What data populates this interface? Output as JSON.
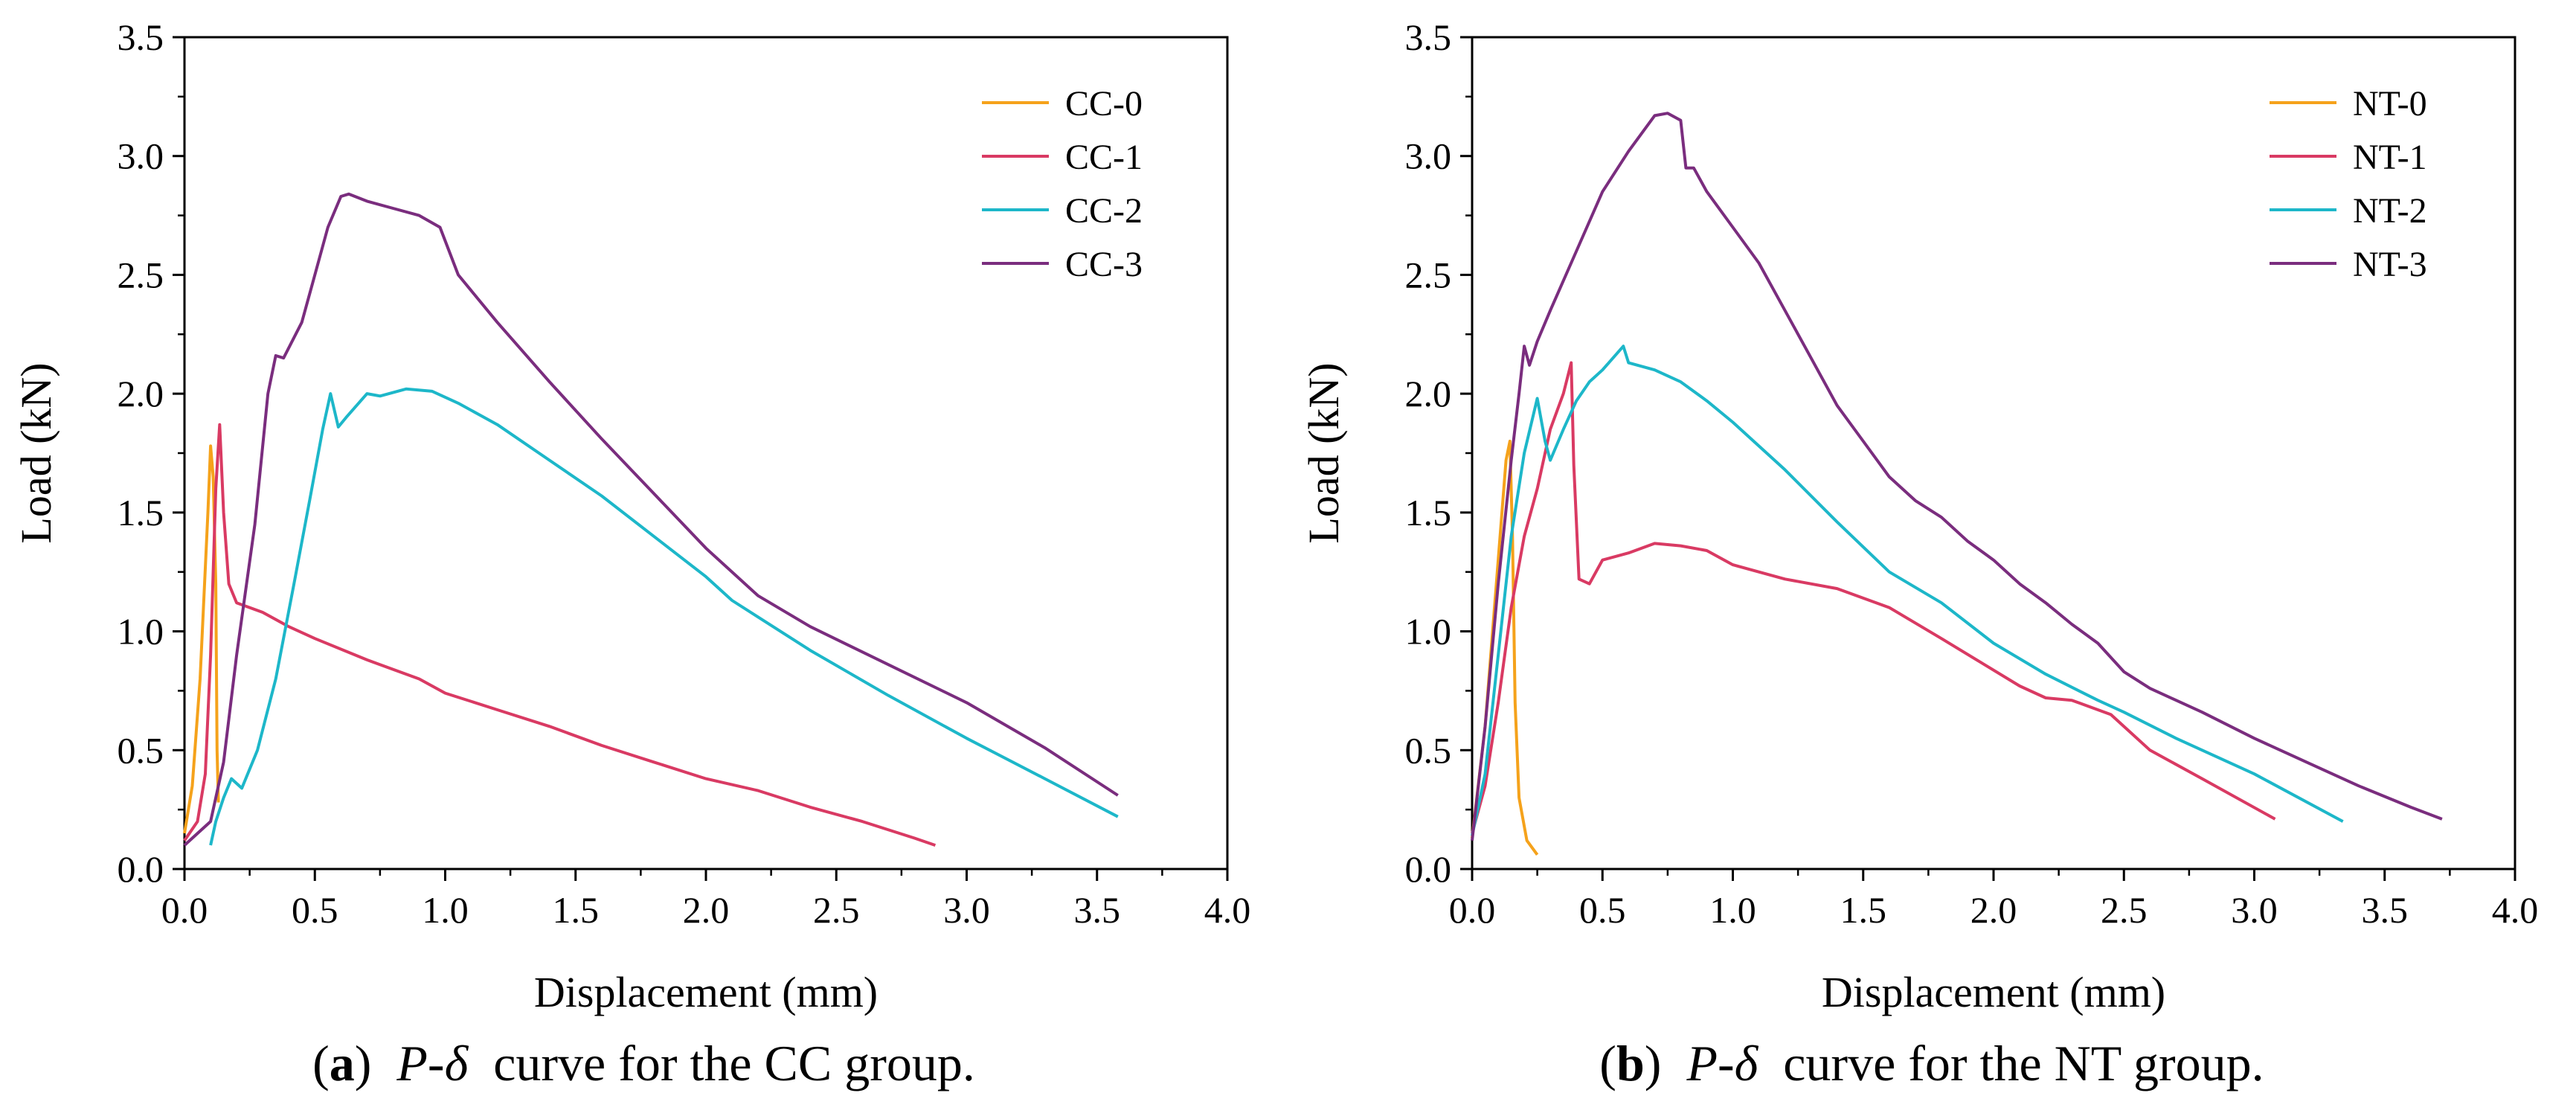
{
  "chart_data": [
    {
      "type": "line",
      "panel": "a",
      "caption": {
        "letter": "a",
        "text": "curve for the CC group."
      },
      "xlabel": "Displacement (mm)",
      "ylabel": "Load (kN)",
      "xlim": [
        0.0,
        4.0
      ],
      "ylim": [
        0.0,
        3.5
      ],
      "xticks": [
        "0.0",
        "0.5",
        "1.0",
        "1.5",
        "2.0",
        "2.5",
        "3.0",
        "3.5",
        "4.0"
      ],
      "yticks": [
        "0.0",
        "0.5",
        "1.0",
        "1.5",
        "2.0",
        "2.5",
        "3.0",
        "3.5"
      ],
      "grid": false,
      "legend_position": "top-right",
      "series": [
        {
          "name": "CC-0",
          "color": "#F5A21B",
          "points": [
            [
              0.0,
              0.15
            ],
            [
              0.03,
              0.35
            ],
            [
              0.06,
              0.8
            ],
            [
              0.09,
              1.5
            ],
            [
              0.1,
              1.78
            ],
            [
              0.11,
              1.65
            ],
            [
              0.12,
              1.2
            ],
            [
              0.125,
              0.5
            ],
            [
              0.13,
              0.28
            ]
          ]
        },
        {
          "name": "CC-1",
          "color": "#D93A63",
          "points": [
            [
              0.0,
              0.12
            ],
            [
              0.05,
              0.2
            ],
            [
              0.08,
              0.4
            ],
            [
              0.1,
              0.9
            ],
            [
              0.12,
              1.6
            ],
            [
              0.135,
              1.87
            ],
            [
              0.15,
              1.5
            ],
            [
              0.17,
              1.2
            ],
            [
              0.2,
              1.12
            ],
            [
              0.3,
              1.08
            ],
            [
              0.4,
              1.02
            ],
            [
              0.5,
              0.97
            ],
            [
              0.7,
              0.88
            ],
            [
              0.9,
              0.8
            ],
            [
              1.0,
              0.74
            ],
            [
              1.2,
              0.67
            ],
            [
              1.4,
              0.6
            ],
            [
              1.6,
              0.52
            ],
            [
              1.8,
              0.45
            ],
            [
              2.0,
              0.38
            ],
            [
              2.2,
              0.33
            ],
            [
              2.4,
              0.26
            ],
            [
              2.6,
              0.2
            ],
            [
              2.8,
              0.13
            ],
            [
              2.88,
              0.1
            ]
          ]
        },
        {
          "name": "CC-2",
          "color": "#1DB7C9",
          "points": [
            [
              0.1,
              0.1
            ],
            [
              0.12,
              0.2
            ],
            [
              0.15,
              0.3
            ],
            [
              0.18,
              0.38
            ],
            [
              0.22,
              0.34
            ],
            [
              0.28,
              0.5
            ],
            [
              0.35,
              0.8
            ],
            [
              0.42,
              1.2
            ],
            [
              0.48,
              1.55
            ],
            [
              0.53,
              1.85
            ],
            [
              0.56,
              2.0
            ],
            [
              0.59,
              1.86
            ],
            [
              0.62,
              1.9
            ],
            [
              0.7,
              2.0
            ],
            [
              0.75,
              1.99
            ],
            [
              0.85,
              2.02
            ],
            [
              0.95,
              2.01
            ],
            [
              1.05,
              1.96
            ],
            [
              1.2,
              1.87
            ],
            [
              1.4,
              1.72
            ],
            [
              1.6,
              1.57
            ],
            [
              1.8,
              1.4
            ],
            [
              2.0,
              1.23
            ],
            [
              2.1,
              1.13
            ],
            [
              2.4,
              0.92
            ],
            [
              2.7,
              0.73
            ],
            [
              3.0,
              0.55
            ],
            [
              3.3,
              0.38
            ],
            [
              3.58,
              0.22
            ]
          ]
        },
        {
          "name": "CC-3",
          "color": "#7A2D7E",
          "points": [
            [
              0.0,
              0.1
            ],
            [
              0.05,
              0.15
            ],
            [
              0.1,
              0.2
            ],
            [
              0.15,
              0.45
            ],
            [
              0.2,
              0.9
            ],
            [
              0.27,
              1.45
            ],
            [
              0.32,
              2.0
            ],
            [
              0.35,
              2.16
            ],
            [
              0.38,
              2.15
            ],
            [
              0.45,
              2.3
            ],
            [
              0.5,
              2.5
            ],
            [
              0.55,
              2.7
            ],
            [
              0.6,
              2.83
            ],
            [
              0.63,
              2.84
            ],
            [
              0.7,
              2.81
            ],
            [
              0.8,
              2.78
            ],
            [
              0.9,
              2.75
            ],
            [
              0.98,
              2.7
            ],
            [
              1.05,
              2.5
            ],
            [
              1.2,
              2.3
            ],
            [
              1.4,
              2.05
            ],
            [
              1.6,
              1.81
            ],
            [
              1.8,
              1.58
            ],
            [
              2.0,
              1.35
            ],
            [
              2.2,
              1.15
            ],
            [
              2.4,
              1.02
            ],
            [
              2.7,
              0.86
            ],
            [
              3.0,
              0.7
            ],
            [
              3.3,
              0.51
            ],
            [
              3.58,
              0.31
            ]
          ]
        }
      ]
    },
    {
      "type": "line",
      "panel": "b",
      "caption": {
        "letter": "b",
        "text": "curve for the NT group."
      },
      "xlabel": "Displacement (mm)",
      "ylabel": "Load (kN)",
      "xlim": [
        0.0,
        4.0
      ],
      "ylim": [
        0.0,
        3.5
      ],
      "xticks": [
        "0.0",
        "0.5",
        "1.0",
        "1.5",
        "2.0",
        "2.5",
        "3.0",
        "3.5",
        "4.0"
      ],
      "yticks": [
        "0.0",
        "0.5",
        "1.0",
        "1.5",
        "2.0",
        "2.5",
        "3.0",
        "3.5"
      ],
      "grid": false,
      "legend_position": "top-right",
      "series": [
        {
          "name": "NT-0",
          "color": "#F5A21B",
          "points": [
            [
              0.0,
              0.13
            ],
            [
              0.05,
              0.6
            ],
            [
              0.1,
              1.3
            ],
            [
              0.13,
              1.72
            ],
            [
              0.145,
              1.8
            ],
            [
              0.155,
              1.4
            ],
            [
              0.165,
              0.7
            ],
            [
              0.18,
              0.3
            ],
            [
              0.21,
              0.12
            ],
            [
              0.25,
              0.06
            ]
          ]
        },
        {
          "name": "NT-1",
          "color": "#D93A63",
          "points": [
            [
              0.0,
              0.15
            ],
            [
              0.05,
              0.35
            ],
            [
              0.1,
              0.7
            ],
            [
              0.15,
              1.1
            ],
            [
              0.2,
              1.4
            ],
            [
              0.25,
              1.6
            ],
            [
              0.3,
              1.85
            ],
            [
              0.35,
              2.0
            ],
            [
              0.38,
              2.13
            ],
            [
              0.39,
              1.7
            ],
            [
              0.41,
              1.22
            ],
            [
              0.45,
              1.2
            ],
            [
              0.5,
              1.3
            ],
            [
              0.6,
              1.33
            ],
            [
              0.7,
              1.37
            ],
            [
              0.8,
              1.36
            ],
            [
              0.9,
              1.34
            ],
            [
              1.0,
              1.28
            ],
            [
              1.2,
              1.22
            ],
            [
              1.4,
              1.18
            ],
            [
              1.6,
              1.1
            ],
            [
              1.8,
              0.97
            ],
            [
              1.95,
              0.87
            ],
            [
              2.1,
              0.77
            ],
            [
              2.2,
              0.72
            ],
            [
              2.3,
              0.71
            ],
            [
              2.45,
              0.65
            ],
            [
              2.6,
              0.5
            ],
            [
              2.8,
              0.38
            ],
            [
              3.08,
              0.21
            ]
          ]
        },
        {
          "name": "NT-2",
          "color": "#1DB7C9",
          "points": [
            [
              0.0,
              0.14
            ],
            [
              0.05,
              0.4
            ],
            [
              0.1,
              0.9
            ],
            [
              0.15,
              1.4
            ],
            [
              0.2,
              1.75
            ],
            [
              0.25,
              1.98
            ],
            [
              0.28,
              1.8
            ],
            [
              0.3,
              1.72
            ],
            [
              0.35,
              1.85
            ],
            [
              0.4,
              1.97
            ],
            [
              0.45,
              2.05
            ],
            [
              0.5,
              2.1
            ],
            [
              0.58,
              2.2
            ],
            [
              0.6,
              2.13
            ],
            [
              0.7,
              2.1
            ],
            [
              0.8,
              2.05
            ],
            [
              0.9,
              1.97
            ],
            [
              1.0,
              1.88
            ],
            [
              1.2,
              1.68
            ],
            [
              1.4,
              1.46
            ],
            [
              1.6,
              1.25
            ],
            [
              1.8,
              1.12
            ],
            [
              2.0,
              0.95
            ],
            [
              2.2,
              0.82
            ],
            [
              2.4,
              0.71
            ],
            [
              2.5,
              0.66
            ],
            [
              2.7,
              0.55
            ],
            [
              3.0,
              0.4
            ],
            [
              3.34,
              0.2
            ]
          ]
        },
        {
          "name": "NT-3",
          "color": "#7A2D7E",
          "points": [
            [
              0.0,
              0.12
            ],
            [
              0.05,
              0.6
            ],
            [
              0.1,
              1.2
            ],
            [
              0.15,
              1.72
            ],
            [
              0.18,
              2.0
            ],
            [
              0.2,
              2.2
            ],
            [
              0.22,
              2.12
            ],
            [
              0.25,
              2.22
            ],
            [
              0.3,
              2.35
            ],
            [
              0.4,
              2.6
            ],
            [
              0.5,
              2.85
            ],
            [
              0.6,
              3.02
            ],
            [
              0.7,
              3.17
            ],
            [
              0.75,
              3.18
            ],
            [
              0.8,
              3.15
            ],
            [
              0.82,
              2.95
            ],
            [
              0.85,
              2.95
            ],
            [
              0.9,
              2.85
            ],
            [
              1.0,
              2.7
            ],
            [
              1.1,
              2.55
            ],
            [
              1.2,
              2.35
            ],
            [
              1.3,
              2.15
            ],
            [
              1.4,
              1.95
            ],
            [
              1.5,
              1.8
            ],
            [
              1.6,
              1.65
            ],
            [
              1.7,
              1.55
            ],
            [
              1.8,
              1.48
            ],
            [
              1.9,
              1.38
            ],
            [
              2.0,
              1.3
            ],
            [
              2.1,
              1.2
            ],
            [
              2.2,
              1.12
            ],
            [
              2.3,
              1.03
            ],
            [
              2.4,
              0.95
            ],
            [
              2.5,
              0.83
            ],
            [
              2.6,
              0.76
            ],
            [
              2.8,
              0.66
            ],
            [
              3.0,
              0.55
            ],
            [
              3.2,
              0.45
            ],
            [
              3.4,
              0.35
            ],
            [
              3.6,
              0.26
            ],
            [
              3.72,
              0.21
            ]
          ]
        }
      ]
    }
  ],
  "captions": {
    "a": {
      "open": "(",
      "letter": "a",
      "close": ")",
      "symbol_p": "P",
      "dash": "-",
      "symbol_delta": "δ",
      "text": "curve for the CC group."
    },
    "b": {
      "open": "(",
      "letter": "b",
      "close": ")",
      "symbol_p": "P",
      "dash": "-",
      "symbol_delta": "δ",
      "text": "curve for the NT group."
    }
  }
}
